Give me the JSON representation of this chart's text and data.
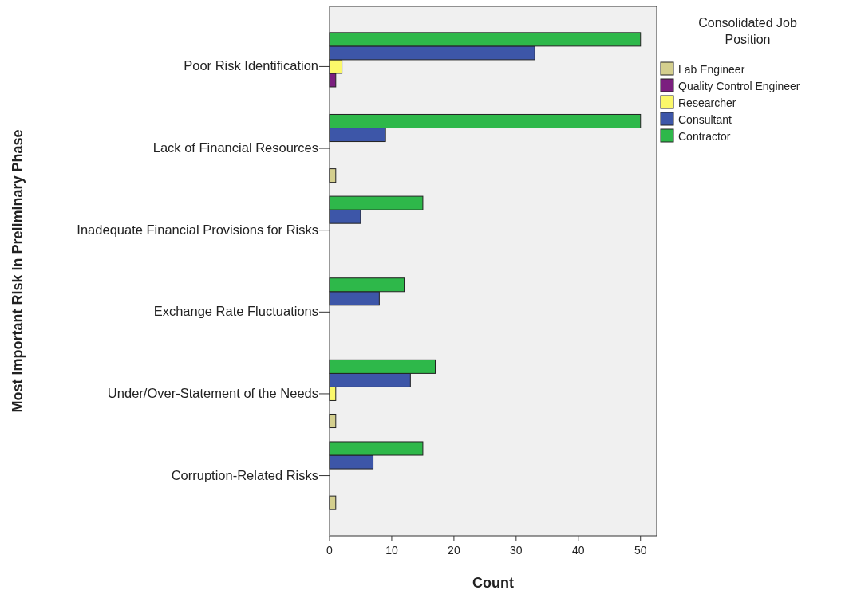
{
  "chart_data": {
    "type": "bar",
    "orientation": "horizontal",
    "xlabel": "Count",
    "ylabel": "Most Important Risk in Preliminary Phase",
    "legend_title": "Consolidated Job Position",
    "legend": "right",
    "categories": [
      "Poor Risk Identification",
      "Lack of Financial Resources",
      "Inadequate Financial Provisions for Risks",
      "Exchange Rate Fluctuations",
      "Under/Over-Statement of the Needs",
      "Corruption-Related Risks"
    ],
    "xlim": [
      0,
      52.6
    ],
    "xticks": [
      0,
      10,
      20,
      30,
      40,
      50
    ],
    "series": [
      {
        "name": "Lab Engineer",
        "color": "#d4cf8e",
        "values": [
          null,
          1,
          null,
          null,
          1,
          1
        ]
      },
      {
        "name": "Quality Control Engineer",
        "color": "#7b1f7f",
        "values": [
          1,
          null,
          null,
          null,
          null,
          null
        ]
      },
      {
        "name": "Researcher",
        "color": "#fbf86a",
        "values": [
          2,
          null,
          null,
          null,
          1,
          null
        ]
      },
      {
        "name": "Consultant",
        "color": "#3d56a8",
        "values": [
          33,
          9,
          5,
          8,
          13,
          7
        ]
      },
      {
        "name": "Contractor",
        "color": "#2eb84a",
        "values": [
          50,
          50,
          15,
          12,
          17,
          15
        ]
      }
    ]
  }
}
